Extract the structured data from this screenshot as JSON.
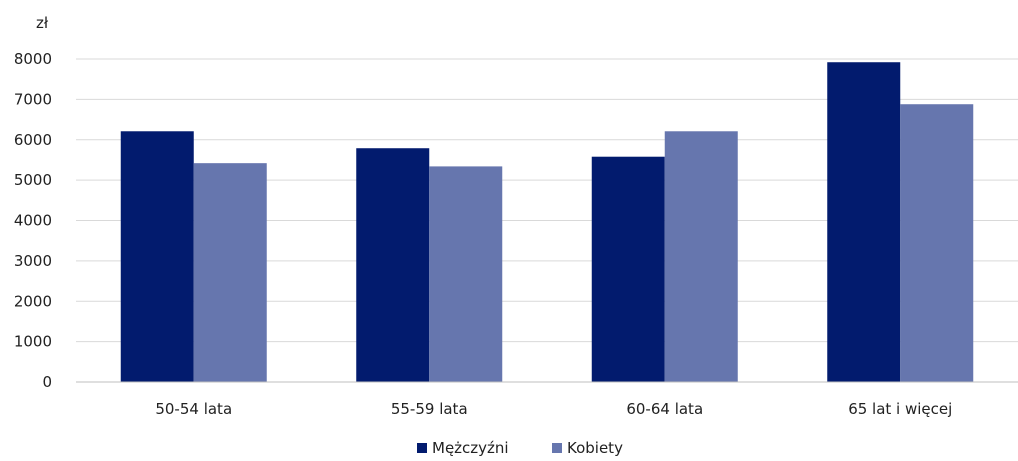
{
  "chart_data": {
    "type": "bar",
    "y_unit_label": "zł",
    "categories": [
      "50-54 lata",
      "55-59 lata",
      "60-64 lata",
      "65 lat i więcej"
    ],
    "series": [
      {
        "name": "Mężczyźni",
        "color": "#021b6e",
        "values": [
          6210,
          5790,
          5580,
          7920
        ]
      },
      {
        "name": "Kobiety",
        "color": "#6676ae",
        "values": [
          5420,
          5340,
          6210,
          6880
        ]
      }
    ],
    "ylim": [
      0,
      8000
    ],
    "yticks": [
      "0",
      "1000",
      "2000",
      "3000",
      "4000",
      "5000",
      "6000",
      "7000",
      "8000"
    ],
    "grid": true,
    "legend_position": "bottom"
  }
}
